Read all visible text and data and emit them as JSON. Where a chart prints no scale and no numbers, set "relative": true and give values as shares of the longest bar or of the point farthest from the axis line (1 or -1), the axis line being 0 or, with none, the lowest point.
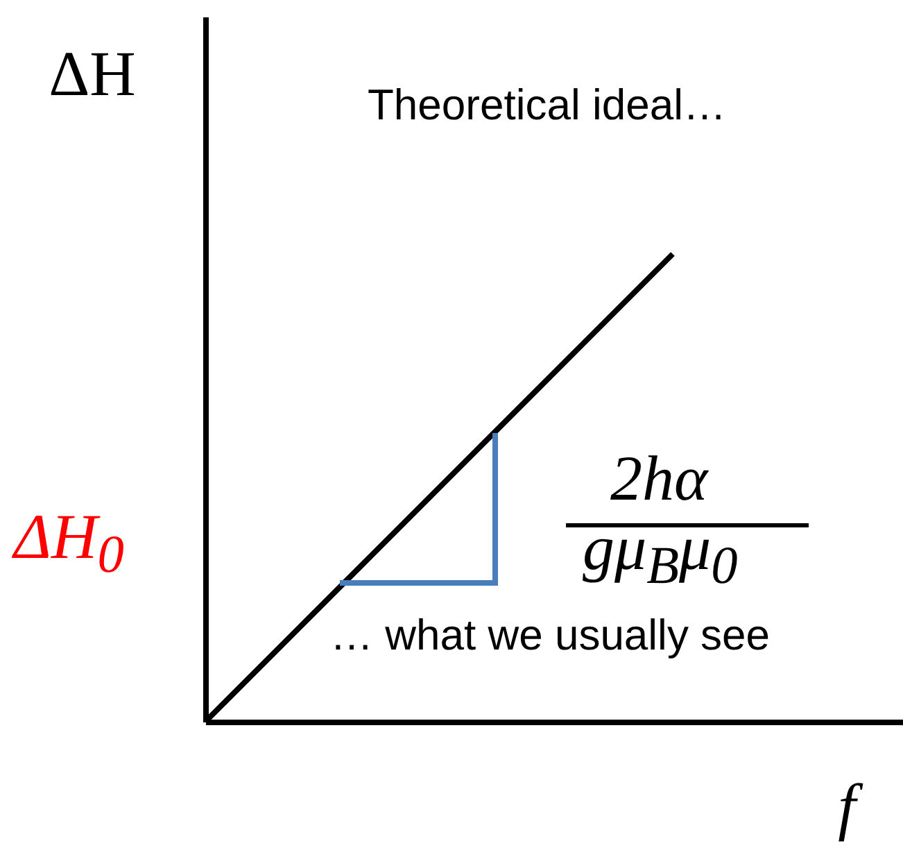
{
  "chart_data": {
    "type": "line",
    "relative": true,
    "xlabel": "f",
    "ylabel": "ΔH",
    "categories": [
      null,
      null
    ],
    "series": [
      {
        "color": "#000000",
        "values": [
          0,
          1
        ]
      }
    ],
    "annotations": [
      "Theoretical ideal…",
      "… what we usually see",
      "2hα",
      "gμ$_{B}$μ$_{0}$",
      "ΔH$_{0}$"
    ],
    "grid": false,
    "marker": "none",
    "line_style": "solid"
  }
}
